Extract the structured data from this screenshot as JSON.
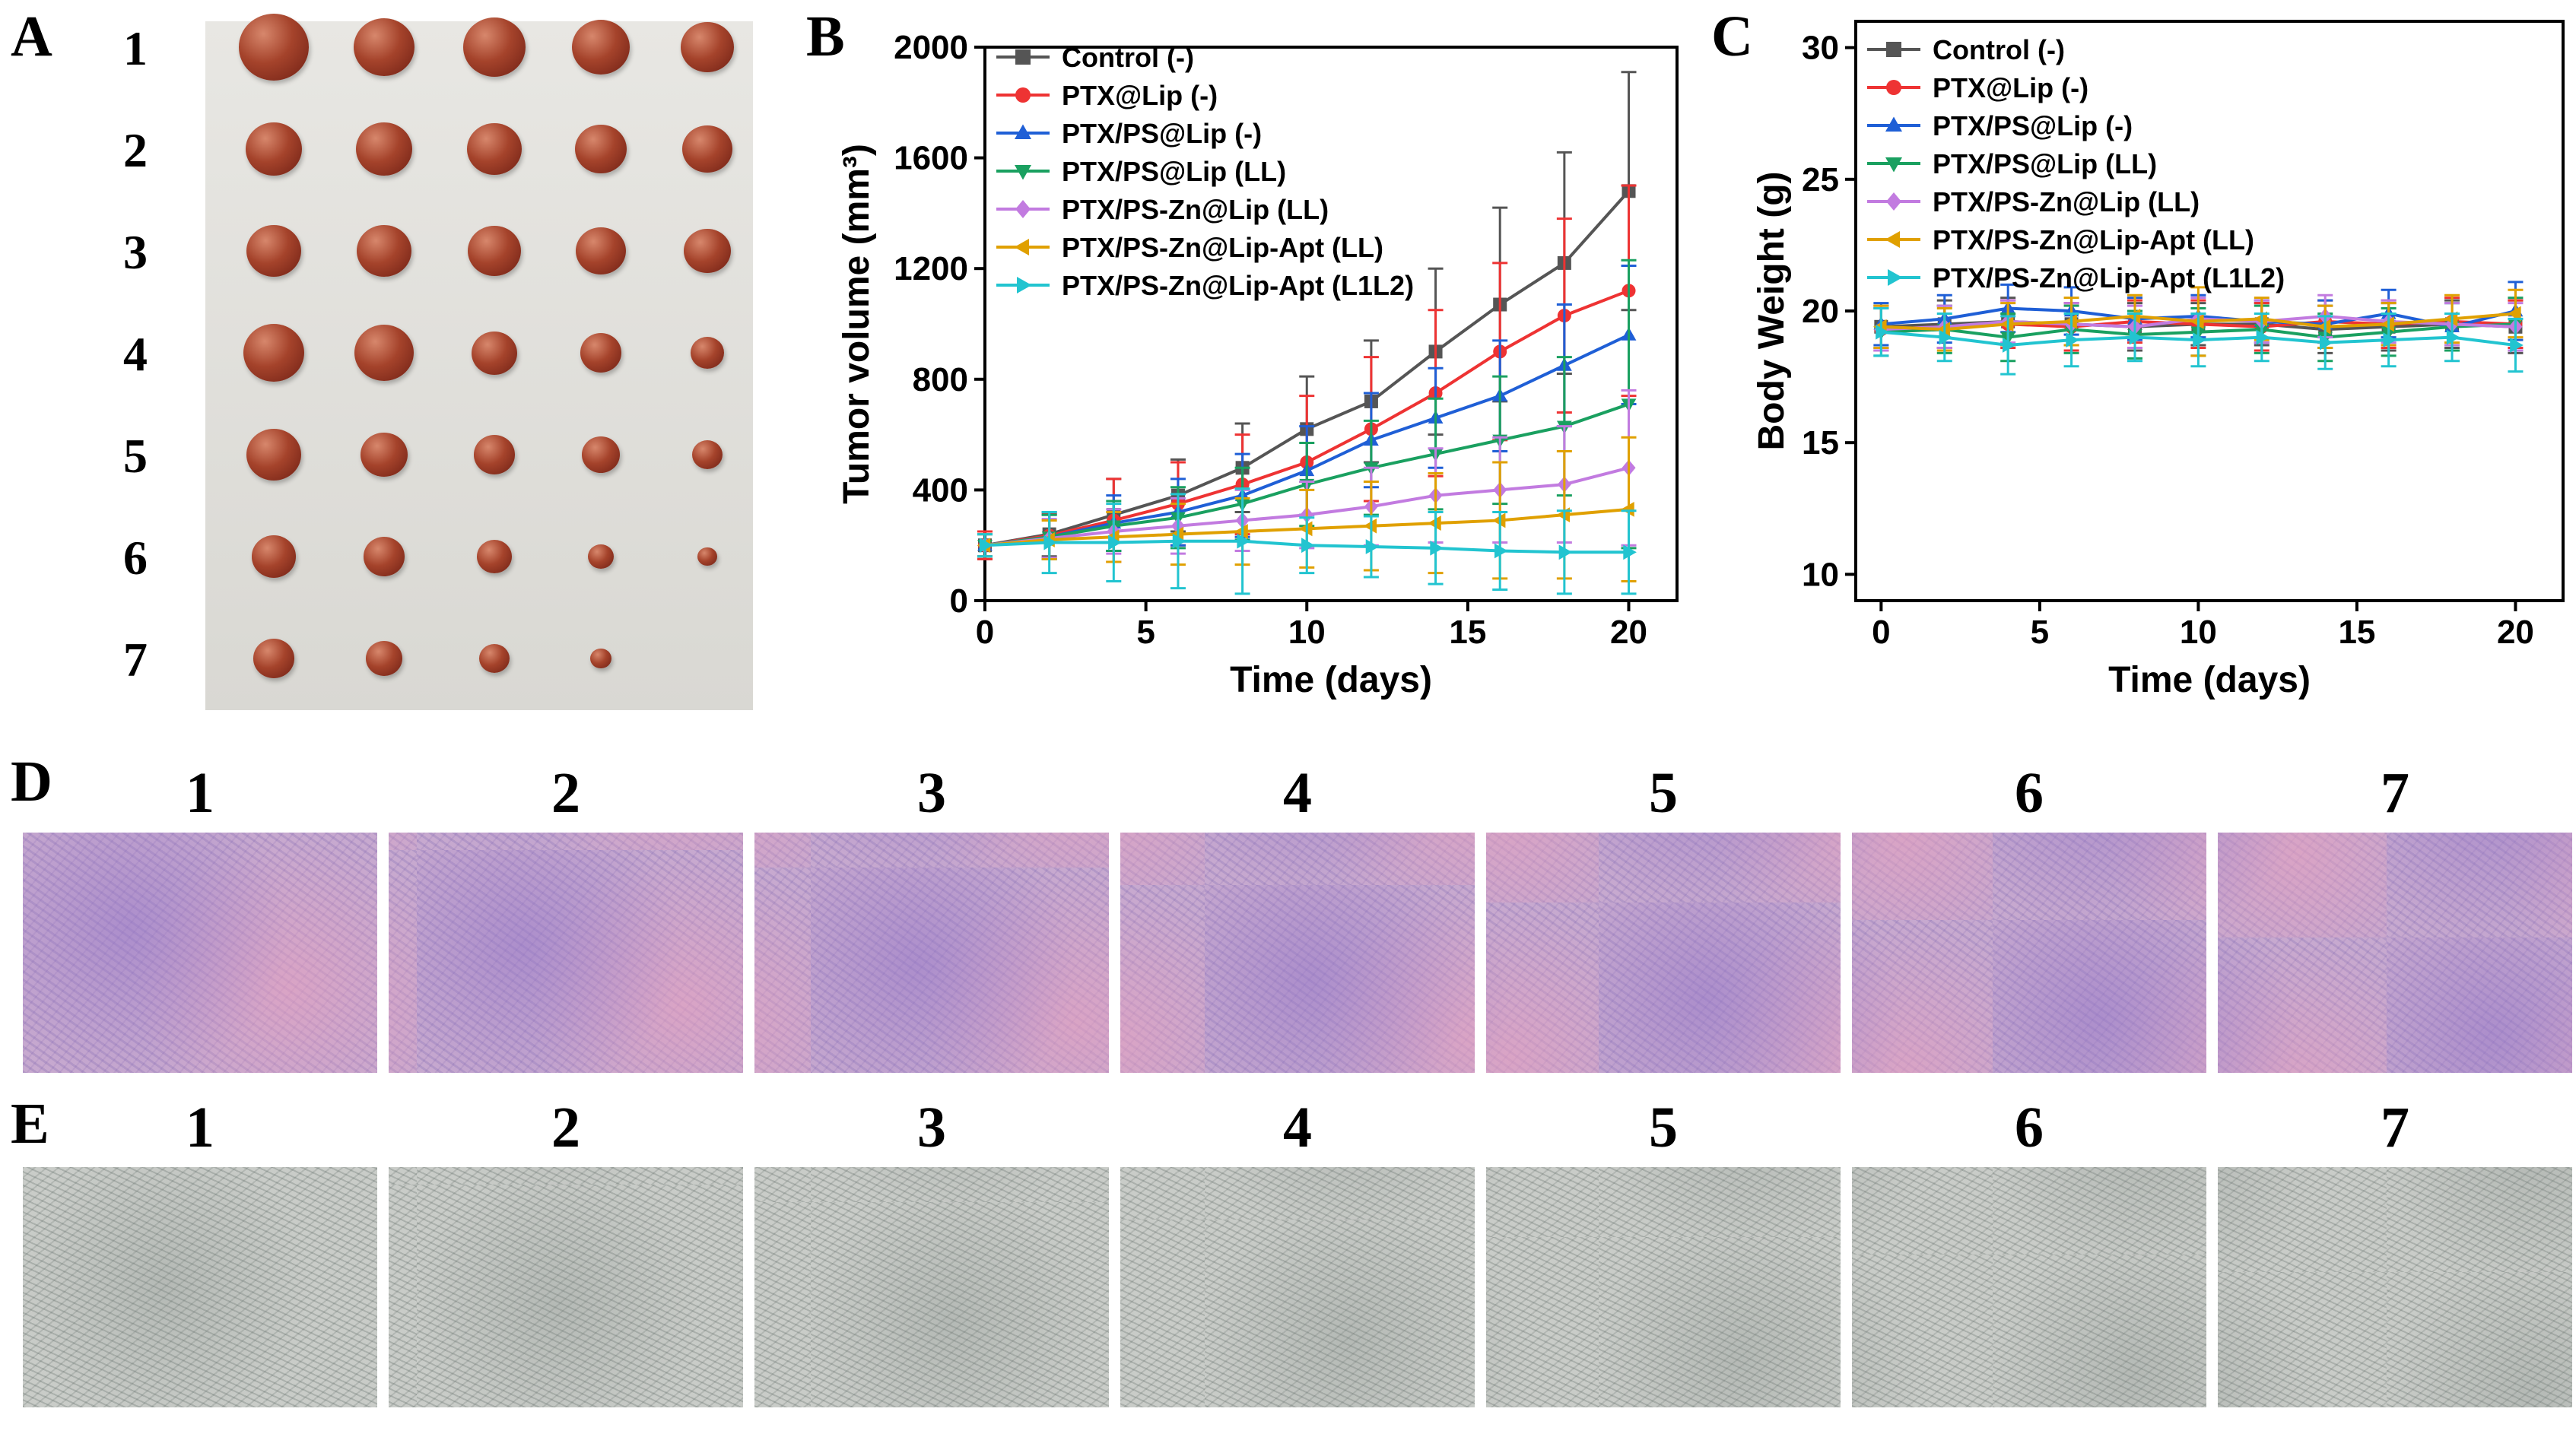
{
  "panel_labels": {
    "A": "A",
    "B": "B",
    "C": "C",
    "D": "D",
    "E": "E"
  },
  "photo_row_labels": [
    "1",
    "2",
    "3",
    "4",
    "5",
    "6",
    "7"
  ],
  "tile_column_labels": [
    "1",
    "2",
    "3",
    "4",
    "5",
    "6",
    "7"
  ],
  "photo_tumor_counts": [
    5,
    5,
    5,
    5,
    5,
    5,
    4
  ],
  "colors": {
    "control": "#555555",
    "ptx_lip": "#ee3333",
    "ptx_ps_lip": "#1f5fd6",
    "ptx_ps_lip_ll": "#1aa060",
    "ptx_ps_zn_lip_ll": "#c27be0",
    "ptx_ps_zn_lip_apt_ll": "#e0a000",
    "ptx_ps_zn_lip_apt_l1l2": "#22c4d0"
  },
  "chart_data": [
    {
      "type": "line",
      "panel": "B",
      "xlabel": "Time (days)",
      "ylabel": "Tumor volume (mm³)",
      "xlim": [
        0,
        21.5
      ],
      "ylim": [
        0,
        2000
      ],
      "xticks": [
        0,
        5,
        10,
        15,
        20
      ],
      "yticks": [
        0,
        400,
        800,
        1200,
        1600,
        2000
      ],
      "legend": "top-left",
      "x": [
        0,
        2,
        4,
        6,
        8,
        10,
        12,
        14,
        16,
        18,
        20
      ],
      "series": [
        {
          "name": "Control (-)",
          "marker": "square",
          "color_key": "control",
          "values": [
            200,
            240,
            310,
            380,
            480,
            620,
            720,
            900,
            1070,
            1220,
            1480
          ],
          "errors": [
            50,
            80,
            130,
            130,
            160,
            190,
            220,
            300,
            350,
            400,
            430
          ]
        },
        {
          "name": "PTX@Lip (-)",
          "marker": "circle",
          "color_key": "ptx_lip",
          "values": [
            200,
            235,
            290,
            350,
            420,
            500,
            620,
            750,
            900,
            1030,
            1120
          ],
          "errors": [
            50,
            80,
            150,
            150,
            180,
            240,
            260,
            300,
            320,
            350,
            380
          ]
        },
        {
          "name": "PTX/PS@Lip (-)",
          "marker": "triangle-up",
          "color_key": "ptx_ps_lip",
          "values": [
            200,
            230,
            280,
            320,
            380,
            470,
            580,
            660,
            740,
            850,
            960
          ],
          "errors": [
            40,
            80,
            100,
            120,
            150,
            160,
            170,
            180,
            200,
            220,
            250
          ]
        },
        {
          "name": "PTX/PS@Lip (LL)",
          "marker": "triangle-down",
          "color_key": "ptx_ps_lip_ll",
          "values": [
            200,
            230,
            270,
            300,
            350,
            420,
            480,
            530,
            580,
            630,
            710
          ],
          "errors": [
            40,
            80,
            90,
            110,
            130,
            150,
            170,
            200,
            230,
            250,
            520
          ]
        },
        {
          "name": "PTX/PS-Zn@Lip (LL)",
          "marker": "diamond",
          "color_key": "ptx_ps_zn_lip_ll",
          "values": [
            200,
            225,
            250,
            270,
            290,
            310,
            340,
            380,
            400,
            420,
            480
          ],
          "errors": [
            40,
            70,
            80,
            100,
            110,
            120,
            140,
            170,
            190,
            210,
            280
          ]
        },
        {
          "name": "PTX/PS-Zn@Lip-Apt (LL)",
          "marker": "triangle-left",
          "color_key": "ptx_ps_zn_lip_apt_ll",
          "values": [
            200,
            220,
            230,
            240,
            250,
            260,
            270,
            280,
            290,
            310,
            330
          ],
          "errors": [
            40,
            70,
            90,
            110,
            120,
            140,
            160,
            180,
            210,
            230,
            260
          ]
        },
        {
          "name": "PTX/PS-Zn@Lip-Apt (L1L2)",
          "marker": "triangle-right",
          "color_key": "ptx_ps_zn_lip_apt_l1l2",
          "values": [
            200,
            210,
            210,
            215,
            215,
            200,
            195,
            190,
            180,
            175,
            175
          ],
          "errors": [
            40,
            110,
            140,
            170,
            190,
            100,
            110,
            130,
            140,
            150,
            150
          ]
        }
      ]
    },
    {
      "type": "line",
      "panel": "C",
      "xlabel": "Time (days)",
      "ylabel": "Body Weight (g)",
      "xlim": [
        -0.8,
        21.5
      ],
      "ylim": [
        9,
        31
      ],
      "xticks": [
        0,
        5,
        10,
        15,
        20
      ],
      "yticks": [
        10,
        15,
        20,
        25,
        30
      ],
      "legend": "top-left",
      "x": [
        0,
        2,
        4,
        6,
        8,
        10,
        12,
        14,
        16,
        18,
        20
      ],
      "series": [
        {
          "name": "Control (-)",
          "marker": "square",
          "color_key": "control",
          "values": [
            19.4,
            19.5,
            19.6,
            19.5,
            19.4,
            19.5,
            19.5,
            19.3,
            19.4,
            19.5,
            19.4
          ],
          "errors": [
            0.8,
            0.9,
            0.9,
            0.8,
            0.9,
            0.8,
            0.8,
            0.9,
            0.9,
            0.9,
            1.0
          ]
        },
        {
          "name": "PTX@Lip (-)",
          "marker": "circle",
          "color_key": "ptx_lip",
          "values": [
            19.3,
            19.4,
            19.5,
            19.4,
            19.6,
            19.5,
            19.4,
            19.6,
            19.5,
            19.6,
            19.5
          ],
          "errors": [
            0.8,
            0.8,
            0.9,
            0.9,
            0.8,
            0.9,
            0.9,
            0.8,
            0.9,
            0.9,
            0.9
          ]
        },
        {
          "name": "PTX/PS@Lip (-)",
          "marker": "triangle-up",
          "color_key": "ptx_ps_lip",
          "values": [
            19.5,
            19.7,
            20.1,
            20.0,
            19.7,
            19.8,
            19.6,
            19.5,
            19.9,
            19.4,
            20.0
          ],
          "errors": [
            0.8,
            0.9,
            0.9,
            0.9,
            0.8,
            0.8,
            0.8,
            0.9,
            0.9,
            0.9,
            1.1
          ]
        },
        {
          "name": "PTX/PS@Lip (LL)",
          "marker": "triangle-down",
          "color_key": "ptx_ps_lip_ll",
          "values": [
            19.2,
            19.3,
            19.0,
            19.3,
            19.1,
            19.2,
            19.3,
            19.0,
            19.2,
            19.4,
            19.5
          ],
          "errors": [
            0.9,
            0.9,
            0.9,
            0.9,
            0.9,
            0.9,
            0.9,
            0.9,
            0.9,
            0.9,
            1.0
          ]
        },
        {
          "name": "PTX/PS-Zn@Lip (LL)",
          "marker": "diamond",
          "color_key": "ptx_ps_zn_lip_ll",
          "values": [
            19.3,
            19.4,
            19.6,
            19.5,
            19.4,
            19.7,
            19.6,
            19.8,
            19.6,
            19.5,
            19.4
          ],
          "errors": [
            0.8,
            0.8,
            0.8,
            0.8,
            0.8,
            0.8,
            0.8,
            0.8,
            0.8,
            0.8,
            0.9
          ]
        },
        {
          "name": "PTX/PS-Zn@Lip-Apt (LL)",
          "marker": "triangle-left",
          "color_key": "ptx_ps_zn_lip_apt_ll",
          "values": [
            19.4,
            19.3,
            19.5,
            19.6,
            19.8,
            19.6,
            19.7,
            19.4,
            19.5,
            19.7,
            19.9
          ],
          "errors": [
            0.8,
            0.8,
            0.8,
            0.9,
            0.8,
            1.3,
            0.8,
            0.8,
            0.8,
            0.9,
            0.9
          ]
        },
        {
          "name": "PTX/PS-Zn@Lip-Apt (L1L2)",
          "marker": "triangle-right",
          "color_key": "ptx_ps_zn_lip_apt_l1l2",
          "values": [
            19.2,
            19.0,
            18.7,
            18.9,
            19.0,
            18.9,
            19.0,
            18.8,
            18.9,
            19.0,
            18.7
          ],
          "errors": [
            0.9,
            0.9,
            1.1,
            1.0,
            0.9,
            1.0,
            0.9,
            1.0,
            1.0,
            0.9,
            1.0
          ]
        }
      ]
    }
  ]
}
